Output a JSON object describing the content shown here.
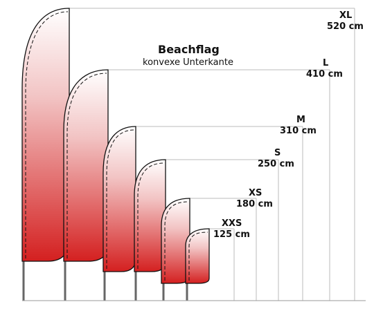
{
  "title": "Beachflag",
  "subtitle": "konvexe Unterkante",
  "colors": {
    "flag_top": "#ffffff",
    "flag_bottom": "#d42020",
    "outline": "#111111",
    "pole": "#666666",
    "guide": "#bbbbbb"
  },
  "flags": [
    {
      "code": "XL",
      "height_label": "520 cm",
      "height_cm": 520
    },
    {
      "code": "L",
      "height_label": "410 cm",
      "height_cm": 410
    },
    {
      "code": "M",
      "height_label": "310 cm",
      "height_cm": 310
    },
    {
      "code": "S",
      "height_label": "250 cm",
      "height_cm": 250
    },
    {
      "code": "XS",
      "height_label": "180 cm",
      "height_cm": 180
    },
    {
      "code": "XXS",
      "height_label": "125 cm",
      "height_cm": 125
    }
  ]
}
